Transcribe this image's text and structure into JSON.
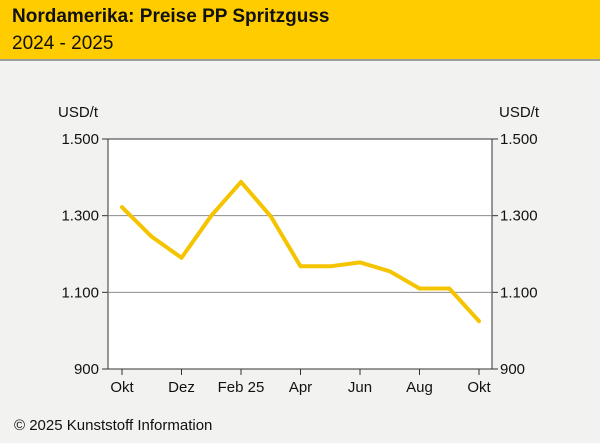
{
  "header": {
    "title": "Nordamerika: Preise PP Spritzguss",
    "subtitle": "2024 - 2025"
  },
  "footer": {
    "copyright": "© 2025 Kunststoff Information"
  },
  "colors": {
    "header_bg": "#ffcc00",
    "line": "#f5c400",
    "plot_bg": "#ffffff",
    "grid": "#8c8c8c"
  },
  "chart_data": {
    "type": "line",
    "unit_left": "USD/t",
    "unit_right": "USD/t",
    "ylim": [
      900,
      1500
    ],
    "y_ticks": [
      {
        "value": 900,
        "label": "900"
      },
      {
        "value": 1100,
        "label": "1.100"
      },
      {
        "value": 1300,
        "label": "1.300"
      },
      {
        "value": 1500,
        "label": "1.500"
      }
    ],
    "x_count": 13,
    "x_ticks": [
      {
        "index": 0,
        "label": "Okt"
      },
      {
        "index": 2,
        "label": "Dez"
      },
      {
        "index": 4,
        "label": "Feb 25"
      },
      {
        "index": 6,
        "label": "Apr"
      },
      {
        "index": 8,
        "label": "Jun"
      },
      {
        "index": 10,
        "label": "Aug"
      },
      {
        "index": 12,
        "label": "Okt"
      }
    ],
    "grid": "horizontal",
    "series": [
      {
        "values": [
          1322,
          1245,
          1190,
          1300,
          1388,
          1298,
          1168,
          1168,
          1178,
          1155,
          1110,
          1110,
          1025
        ]
      }
    ]
  }
}
